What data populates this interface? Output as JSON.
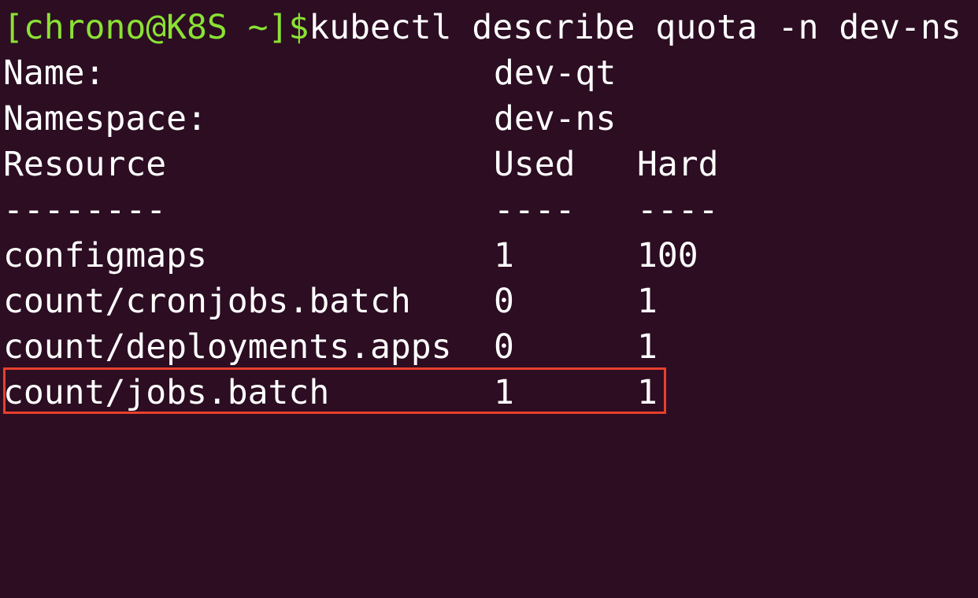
{
  "terminal": {
    "prompt": "[chrono@K8S ~]$",
    "command": "kubectl describe quota -n dev-ns",
    "colors": {
      "background": "#2c0d22",
      "prompt": "#8ae234",
      "text": "#ffffff",
      "highlight": "#e8402c"
    },
    "meta": [
      {
        "label": "Name:",
        "value": "dev-qt"
      },
      {
        "label": "Namespace:",
        "value": "dev-ns"
      }
    ],
    "headers": {
      "resource": "Resource",
      "used": "Used",
      "hard": "Hard"
    },
    "separators": {
      "resource": "--------",
      "used": "----",
      "hard": "----"
    },
    "rows": [
      {
        "resource": "configmaps",
        "used": "1",
        "hard": "100"
      },
      {
        "resource": "count/cronjobs.batch",
        "used": "0",
        "hard": "1"
      },
      {
        "resource": "count/deployments.apps",
        "used": "0",
        "hard": "1"
      },
      {
        "resource": "count/jobs.batch",
        "used": "1",
        "hard": "1",
        "highlighted": true
      }
    ]
  }
}
